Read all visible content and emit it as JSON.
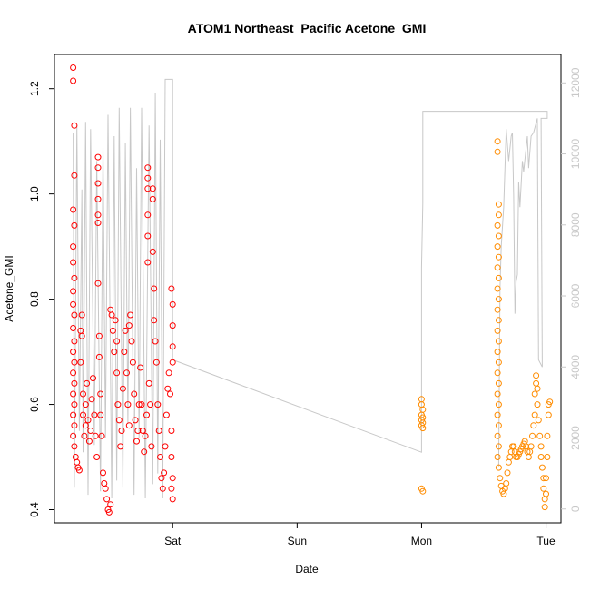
{
  "chart_data": {
    "type": "scatter",
    "title": "ATOM1 Northeast_Pacific Acetone_GMI",
    "xlabel": "Date",
    "ylabel": "Acetone_GMI",
    "x_unit": "days",
    "x_tick_labels": [
      {
        "day": 0,
        "label": "Sat"
      },
      {
        "day": 1,
        "label": "Sun"
      },
      {
        "day": 2,
        "label": "Mon"
      },
      {
        "day": 3,
        "label": "Tue"
      }
    ],
    "xlim": [
      -0.95,
      3.12
    ],
    "ylim": [
      0.375,
      1.265
    ],
    "y_ticks": [
      0.4,
      0.6,
      0.8,
      1.0,
      1.2
    ],
    "y_tick_labels": [
      "0.4",
      "0.6",
      "0.8",
      "1.0",
      "1.2"
    ],
    "y2_label": "",
    "y2_lim": [
      -390,
      12800
    ],
    "y2_ticks": [
      0,
      2000,
      4000,
      6000,
      8000,
      10000,
      12000
    ],
    "y2_tick_labels": [
      "0",
      "2000",
      "4000",
      "6000",
      "8000",
      "10000",
      "12000"
    ],
    "colors": {
      "flight1": "#ff0000",
      "flight2": "#ff8c00",
      "altitude": "#c8c8c8",
      "axis": "#000000"
    },
    "series": [
      {
        "marker": "circle-open",
        "color": "#ff0000",
        "points": [
          [
            -0.8,
            1.24
          ],
          [
            -0.8,
            1.215
          ],
          [
            -0.79,
            1.13
          ],
          [
            -0.79,
            1.035
          ],
          [
            -0.8,
            0.97
          ],
          [
            -0.79,
            0.94
          ],
          [
            -0.8,
            0.9
          ],
          [
            -0.8,
            0.87
          ],
          [
            -0.79,
            0.84
          ],
          [
            -0.8,
            0.815
          ],
          [
            -0.8,
            0.79
          ],
          [
            -0.79,
            0.77
          ],
          [
            -0.8,
            0.745
          ],
          [
            -0.79,
            0.72
          ],
          [
            -0.8,
            0.7
          ],
          [
            -0.79,
            0.68
          ],
          [
            -0.8,
            0.66
          ],
          [
            -0.79,
            0.64
          ],
          [
            -0.8,
            0.62
          ],
          [
            -0.79,
            0.6
          ],
          [
            -0.8,
            0.58
          ],
          [
            -0.79,
            0.56
          ],
          [
            -0.8,
            0.54
          ],
          [
            -0.79,
            0.52
          ],
          [
            -0.78,
            0.5
          ],
          [
            -0.77,
            0.49
          ],
          [
            -0.76,
            0.48
          ],
          [
            -0.75,
            0.475
          ],
          [
            -0.74,
            0.68
          ],
          [
            -0.74,
            0.74
          ],
          [
            -0.73,
            0.77
          ],
          [
            -0.73,
            0.73
          ],
          [
            -0.72,
            0.62
          ],
          [
            -0.72,
            0.58
          ],
          [
            -0.71,
            0.54
          ],
          [
            -0.7,
            0.56
          ],
          [
            -0.7,
            0.6
          ],
          [
            -0.69,
            0.64
          ],
          [
            -0.68,
            0.57
          ],
          [
            -0.67,
            0.53
          ],
          [
            -0.66,
            0.55
          ],
          [
            -0.65,
            0.61
          ],
          [
            -0.64,
            0.65
          ],
          [
            -0.63,
            0.58
          ],
          [
            -0.62,
            0.54
          ],
          [
            -0.61,
            0.5
          ],
          [
            -0.6,
            1.07
          ],
          [
            -0.6,
            1.05
          ],
          [
            -0.6,
            1.02
          ],
          [
            -0.6,
            0.99
          ],
          [
            -0.6,
            0.96
          ],
          [
            -0.6,
            0.945
          ],
          [
            -0.6,
            0.83
          ],
          [
            -0.59,
            0.73
          ],
          [
            -0.59,
            0.69
          ],
          [
            -0.58,
            0.62
          ],
          [
            -0.58,
            0.58
          ],
          [
            -0.57,
            0.54
          ],
          [
            -0.56,
            0.47
          ],
          [
            -0.55,
            0.45
          ],
          [
            -0.54,
            0.44
          ],
          [
            -0.53,
            0.42
          ],
          [
            -0.52,
            0.4
          ],
          [
            -0.51,
            0.395
          ],
          [
            -0.5,
            0.41
          ],
          [
            -0.5,
            0.78
          ],
          [
            -0.49,
            0.77
          ],
          [
            -0.48,
            0.74
          ],
          [
            -0.47,
            0.7
          ],
          [
            -0.46,
            0.76
          ],
          [
            -0.45,
            0.72
          ],
          [
            -0.45,
            0.66
          ],
          [
            -0.44,
            0.6
          ],
          [
            -0.43,
            0.57
          ],
          [
            -0.42,
            0.52
          ],
          [
            -0.41,
            0.55
          ],
          [
            -0.4,
            0.63
          ],
          [
            -0.39,
            0.7
          ],
          [
            -0.38,
            0.74
          ],
          [
            -0.37,
            0.66
          ],
          [
            -0.36,
            0.6
          ],
          [
            -0.35,
            0.56
          ],
          [
            -0.35,
            0.75
          ],
          [
            -0.34,
            0.77
          ],
          [
            -0.33,
            0.72
          ],
          [
            -0.32,
            0.68
          ],
          [
            -0.31,
            0.62
          ],
          [
            -0.3,
            0.57
          ],
          [
            -0.29,
            0.53
          ],
          [
            -0.28,
            0.55
          ],
          [
            -0.27,
            0.6
          ],
          [
            -0.26,
            0.67
          ],
          [
            -0.25,
            0.6
          ],
          [
            -0.24,
            0.55
          ],
          [
            -0.23,
            0.51
          ],
          [
            -0.22,
            0.54
          ],
          [
            -0.21,
            0.58
          ],
          [
            -0.2,
            1.05
          ],
          [
            -0.2,
            1.03
          ],
          [
            -0.2,
            1.01
          ],
          [
            -0.2,
            0.96
          ],
          [
            -0.2,
            0.92
          ],
          [
            -0.2,
            0.87
          ],
          [
            -0.19,
            0.64
          ],
          [
            -0.18,
            0.6
          ],
          [
            -0.17,
            0.52
          ],
          [
            -0.16,
            1.01
          ],
          [
            -0.16,
            0.99
          ],
          [
            -0.16,
            0.89
          ],
          [
            -0.15,
            0.82
          ],
          [
            -0.15,
            0.76
          ],
          [
            -0.14,
            0.72
          ],
          [
            -0.13,
            0.68
          ],
          [
            -0.12,
            0.6
          ],
          [
            -0.11,
            0.55
          ],
          [
            -0.1,
            0.5
          ],
          [
            -0.09,
            0.46
          ],
          [
            -0.08,
            0.44
          ],
          [
            -0.07,
            0.47
          ],
          [
            -0.06,
            0.52
          ],
          [
            -0.05,
            0.58
          ],
          [
            -0.04,
            0.63
          ],
          [
            -0.03,
            0.66
          ],
          [
            -0.02,
            0.62
          ],
          [
            -0.01,
            0.82
          ],
          [
            0.0,
            0.79
          ],
          [
            0.0,
            0.75
          ],
          [
            0.0,
            0.71
          ],
          [
            -0.01,
            0.55
          ],
          [
            -0.01,
            0.5
          ],
          [
            0.0,
            0.46
          ],
          [
            -0.01,
            0.44
          ],
          [
            0.0,
            0.42
          ],
          [
            0.0,
            0.68
          ]
        ]
      },
      {
        "marker": "circle-open",
        "color": "#ff8c00",
        "points": [
          [
            2.0,
            0.61
          ],
          [
            2.0,
            0.6
          ],
          [
            2.01,
            0.59
          ],
          [
            2.0,
            0.58
          ],
          [
            2.01,
            0.575
          ],
          [
            2.0,
            0.57
          ],
          [
            2.01,
            0.565
          ],
          [
            2.0,
            0.56
          ],
          [
            2.01,
            0.555
          ],
          [
            2.0,
            0.44
          ],
          [
            2.01,
            0.435
          ],
          [
            2.61,
            1.1
          ],
          [
            2.61,
            1.08
          ],
          [
            2.62,
            0.98
          ],
          [
            2.62,
            0.96
          ],
          [
            2.61,
            0.94
          ],
          [
            2.62,
            0.92
          ],
          [
            2.61,
            0.9
          ],
          [
            2.62,
            0.88
          ],
          [
            2.61,
            0.86
          ],
          [
            2.62,
            0.84
          ],
          [
            2.61,
            0.82
          ],
          [
            2.62,
            0.8
          ],
          [
            2.61,
            0.78
          ],
          [
            2.62,
            0.76
          ],
          [
            2.61,
            0.74
          ],
          [
            2.62,
            0.72
          ],
          [
            2.61,
            0.7
          ],
          [
            2.62,
            0.68
          ],
          [
            2.61,
            0.66
          ],
          [
            2.62,
            0.64
          ],
          [
            2.61,
            0.62
          ],
          [
            2.62,
            0.6
          ],
          [
            2.61,
            0.58
          ],
          [
            2.62,
            0.56
          ],
          [
            2.61,
            0.54
          ],
          [
            2.62,
            0.52
          ],
          [
            2.61,
            0.5
          ],
          [
            2.62,
            0.48
          ],
          [
            2.63,
            0.46
          ],
          [
            2.64,
            0.445
          ],
          [
            2.65,
            0.435
          ],
          [
            2.66,
            0.43
          ],
          [
            2.67,
            0.44
          ],
          [
            2.68,
            0.45
          ],
          [
            2.69,
            0.47
          ],
          [
            2.7,
            0.49
          ],
          [
            2.71,
            0.5
          ],
          [
            2.72,
            0.51
          ],
          [
            2.73,
            0.52
          ],
          [
            2.74,
            0.52
          ],
          [
            2.75,
            0.51
          ],
          [
            2.76,
            0.5
          ],
          [
            2.77,
            0.5
          ],
          [
            2.78,
            0.505
          ],
          [
            2.79,
            0.51
          ],
          [
            2.8,
            0.515
          ],
          [
            2.81,
            0.52
          ],
          [
            2.82,
            0.525
          ],
          [
            2.83,
            0.53
          ],
          [
            2.84,
            0.52
          ],
          [
            2.85,
            0.51
          ],
          [
            2.86,
            0.5
          ],
          [
            2.87,
            0.51
          ],
          [
            2.88,
            0.52
          ],
          [
            2.89,
            0.54
          ],
          [
            2.9,
            0.56
          ],
          [
            2.91,
            0.58
          ],
          [
            2.91,
            0.62
          ],
          [
            2.92,
            0.64
          ],
          [
            2.92,
            0.655
          ],
          [
            2.93,
            0.63
          ],
          [
            2.93,
            0.6
          ],
          [
            2.94,
            0.57
          ],
          [
            2.95,
            0.54
          ],
          [
            2.96,
            0.52
          ],
          [
            2.96,
            0.5
          ],
          [
            2.97,
            0.48
          ],
          [
            2.98,
            0.46
          ],
          [
            2.98,
            0.44
          ],
          [
            2.99,
            0.42
          ],
          [
            2.99,
            0.405
          ],
          [
            3.0,
            0.43
          ],
          [
            3.0,
            0.46
          ],
          [
            3.01,
            0.5
          ],
          [
            3.01,
            0.54
          ],
          [
            3.02,
            0.58
          ],
          [
            3.02,
            0.6
          ],
          [
            3.03,
            0.605
          ]
        ]
      }
    ],
    "altitude_line": {
      "color": "#c8c8c8",
      "axis": "right",
      "points": [
        [
          -0.8,
          10600
        ],
        [
          -0.79,
          600
        ],
        [
          -0.77,
          10800
        ],
        [
          -0.75,
          2200
        ],
        [
          -0.73,
          9000
        ],
        [
          -0.72,
          1600
        ],
        [
          -0.7,
          10900
        ],
        [
          -0.68,
          400
        ],
        [
          -0.66,
          10700
        ],
        [
          -0.63,
          1800
        ],
        [
          -0.61,
          9800
        ],
        [
          -0.58,
          500
        ],
        [
          -0.56,
          10200
        ],
        [
          -0.54,
          2000
        ],
        [
          -0.52,
          11100
        ],
        [
          -0.49,
          300
        ],
        [
          -0.47,
          10500
        ],
        [
          -0.45,
          800
        ],
        [
          -0.43,
          11300
        ],
        [
          -0.4,
          600
        ],
        [
          -0.38,
          10300
        ],
        [
          -0.36,
          2400
        ],
        [
          -0.34,
          11300
        ],
        [
          -0.31,
          400
        ],
        [
          -0.29,
          9600
        ],
        [
          -0.27,
          2000
        ],
        [
          -0.25,
          11300
        ],
        [
          -0.22,
          300
        ],
        [
          -0.19,
          10800
        ],
        [
          -0.16,
          700
        ],
        [
          -0.14,
          11700
        ],
        [
          -0.12,
          1000
        ],
        [
          -0.1,
          10400
        ],
        [
          -0.08,
          300
        ],
        [
          -0.06,
          12100
        ],
        [
          -0.04,
          12100
        ],
        [
          -0.02,
          12100
        ],
        [
          0.0,
          12100
        ],
        [
          0.0,
          4200
        ],
        [
          2.0,
          1600
        ],
        [
          2.0,
          6800
        ],
        [
          2.01,
          8600
        ],
        [
          2.01,
          11200
        ],
        [
          2.7,
          11200
        ],
        [
          3.01,
          11200
        ],
        [
          3.01,
          11000
        ],
        [
          2.96,
          11000
        ],
        [
          2.97,
          4000
        ],
        [
          2.94,
          4200
        ],
        [
          2.93,
          11000
        ],
        [
          2.9,
          10600
        ],
        [
          2.88,
          10500
        ],
        [
          2.86,
          9600
        ],
        [
          2.85,
          10500
        ],
        [
          2.82,
          9500
        ],
        [
          2.81,
          9800
        ],
        [
          2.79,
          8500
        ],
        [
          2.78,
          9200
        ],
        [
          2.77,
          6600
        ],
        [
          2.76,
          6400
        ],
        [
          2.75,
          5500
        ],
        [
          2.74,
          8800
        ],
        [
          2.73,
          10600
        ],
        [
          2.72,
          10500
        ],
        [
          2.7,
          9800
        ],
        [
          2.68,
          10700
        ],
        [
          2.66,
          8500
        ],
        [
          2.64,
          7400
        ],
        [
          2.63,
          6200
        ],
        [
          2.62,
          1200
        ]
      ]
    }
  }
}
